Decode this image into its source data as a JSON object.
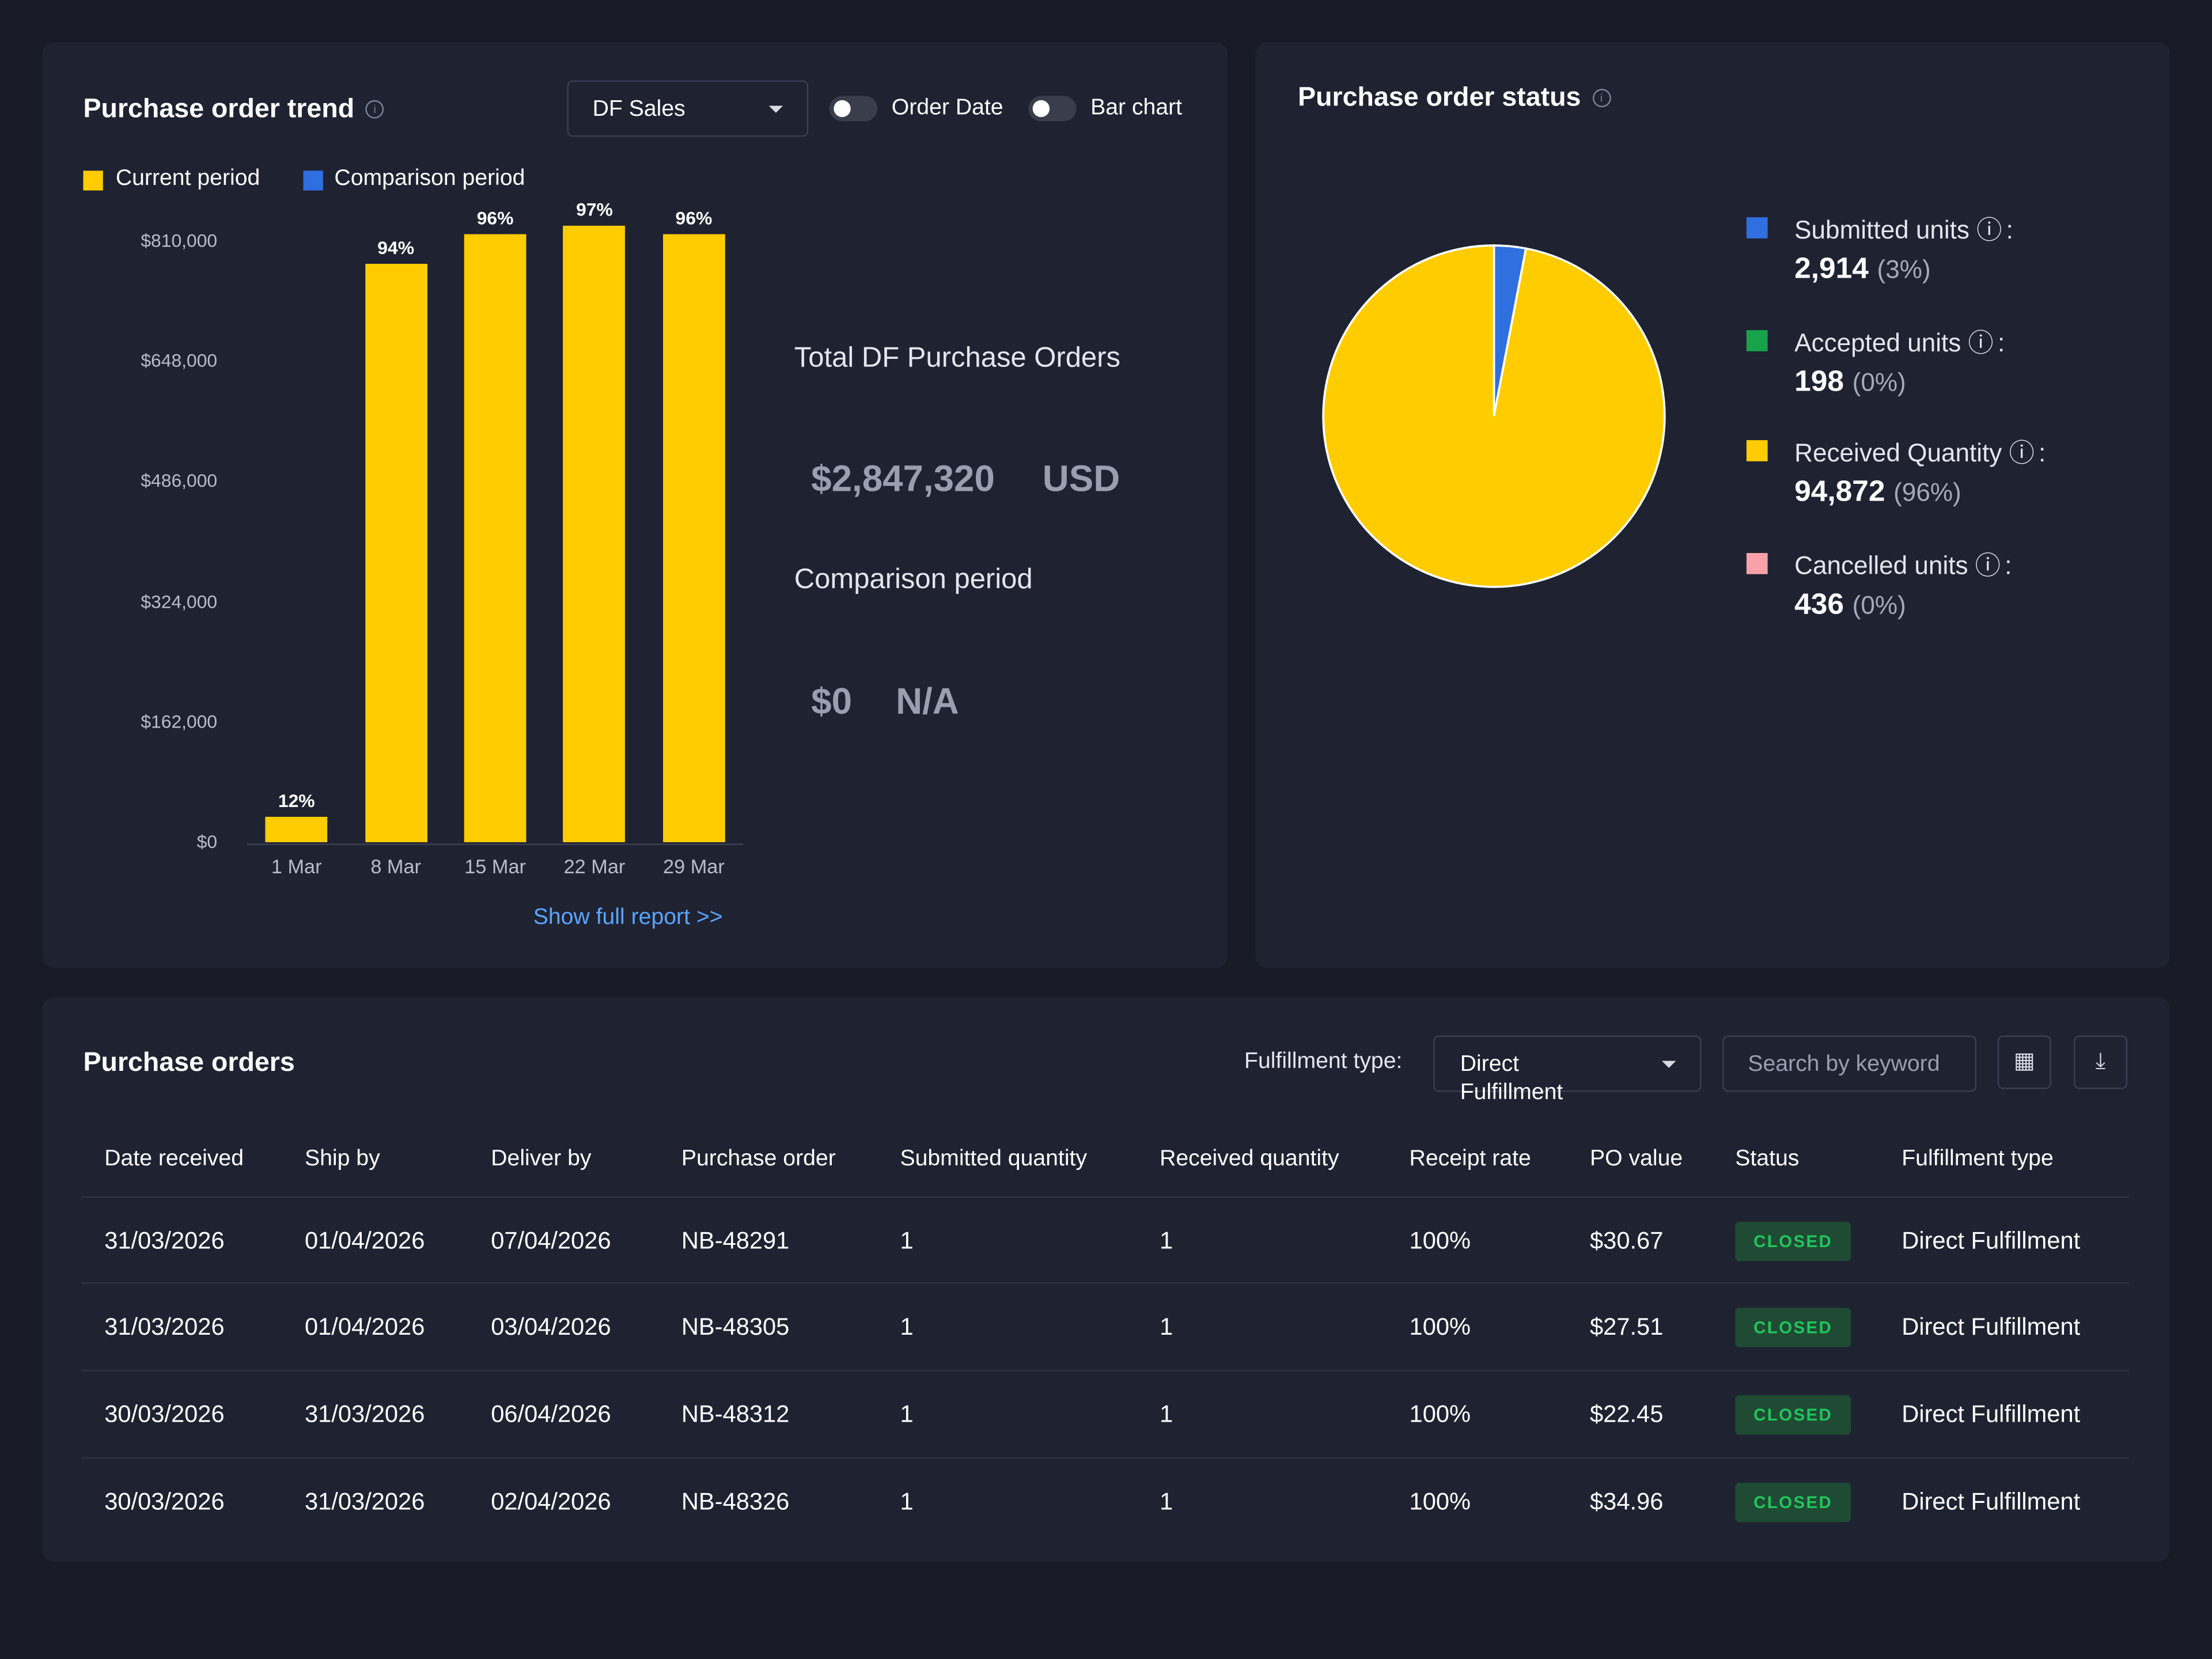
{
  "trend": {
    "title": "Purchase order trend",
    "info_icon": "i",
    "dropdown_value": "DF Sales",
    "toggle_order_date": "Order Date",
    "toggle_bar_chart": "Bar chart",
    "legend_current": "Current period",
    "legend_comparison": "Comparison period",
    "total_label": "Total DF Purchase Orders",
    "total_value": "$2,847,320",
    "total_currency": "USD",
    "comparison_label": "Comparison period",
    "comparison_value": "$0",
    "comparison_na": "N/A",
    "show_full_report": "Show full report >>",
    "colors": {
      "current": "#ffcc00",
      "comparison": "#2f6fe0"
    }
  },
  "chart_data": {
    "type": "bar",
    "categories": [
      "1 Mar",
      "8 Mar",
      "15 Mar",
      "22 Mar",
      "29 Mar"
    ],
    "series": [
      {
        "name": "Current period",
        "values": [
          34000,
          780000,
          820000,
          830000,
          820000
        ],
        "data_labels": [
          "12%",
          "94%",
          "96%",
          "97%",
          "96%"
        ]
      }
    ],
    "yticks": [
      "$0",
      "$162,000",
      "$324,000",
      "$486,000",
      "$648,000",
      "$810,000"
    ],
    "ylim": [
      0,
      810000
    ],
    "grid": false
  },
  "status": {
    "title": "Purchase order status",
    "info_icon": "i",
    "items": [
      {
        "label": "Submitted units",
        "value": "2,914",
        "pct": "(3%)",
        "color": "#2f6fe0",
        "icon": "ⓘ"
      },
      {
        "label": "Accepted units",
        "value": "198",
        "pct": "(0%)",
        "color": "#16a34a",
        "icon": "ⓘ"
      },
      {
        "label": "Received Quantity",
        "value": "94,872",
        "pct": "(96%)",
        "color": "#ffcc00",
        "icon": "ⓘ"
      },
      {
        "label": "Cancelled units",
        "value": "436",
        "pct": "(0%)",
        "color": "#f8a1a8",
        "icon": "ⓘ"
      }
    ],
    "pie": [
      {
        "name": "Submitted units",
        "fraction": 0.03,
        "color": "#2f6fe0"
      },
      {
        "name": "Received Quantity",
        "fraction": 0.97,
        "color": "#ffcc00"
      }
    ]
  },
  "orders": {
    "title": "Purchase orders",
    "fulfillment_label": "Fulfillment type:",
    "fulfillment_value": "Direct Fulfillment",
    "search_placeholder": "Search by keyword",
    "columns_icon": "▦",
    "download_icon": "⤓",
    "columns": [
      "Date received",
      "Ship by",
      "Deliver by",
      "Purchase order",
      "Submitted quantity",
      "Received quantity",
      "Receipt rate",
      "PO value",
      "Status",
      "Fulfillment type"
    ],
    "rows": [
      [
        "31/03/2026",
        "01/04/2026",
        "07/04/2026",
        "NB-48291",
        "1",
        "1",
        "100%",
        "$30.67",
        "CLOSED",
        "Direct Fulfillment"
      ],
      [
        "31/03/2026",
        "01/04/2026",
        "03/04/2026",
        "NB-48305",
        "1",
        "1",
        "100%",
        "$27.51",
        "CLOSED",
        "Direct Fulfillment"
      ],
      [
        "30/03/2026",
        "31/03/2026",
        "06/04/2026",
        "NB-48312",
        "1",
        "1",
        "100%",
        "$22.45",
        "CLOSED",
        "Direct Fulfillment"
      ],
      [
        "30/03/2026",
        "31/03/2026",
        "02/04/2026",
        "NB-48326",
        "1",
        "1",
        "100%",
        "$34.96",
        "CLOSED",
        "Direct Fulfillment"
      ]
    ]
  }
}
